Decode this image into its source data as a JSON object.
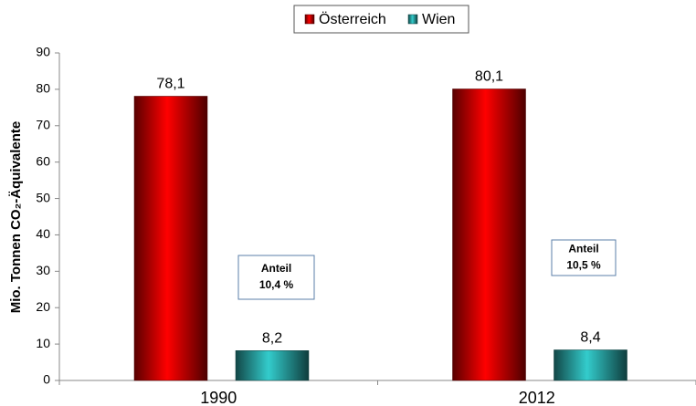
{
  "chart_data": {
    "type": "bar",
    "categories": [
      "1990",
      "2012"
    ],
    "series": [
      {
        "name": "Österreich",
        "color": "#ff0000",
        "values": [
          78.1,
          80.1
        ],
        "value_labels": [
          "78,1",
          "80,1"
        ]
      },
      {
        "name": "Wien",
        "color": "#33cccc",
        "values": [
          8.2,
          8.4
        ],
        "value_labels": [
          "8,2",
          "8,4"
        ]
      }
    ],
    "ylabel": "Mio. Tonnen CO₂-Äquivalente",
    "ylim": [
      0,
      90
    ],
    "yticks": [
      0,
      10,
      20,
      30,
      40,
      50,
      60,
      70,
      80,
      90
    ],
    "grid": false,
    "legend": "top",
    "annotations": [
      {
        "lines": [
          "Anteil",
          "10,4 %"
        ]
      },
      {
        "lines": [
          "Anteil",
          "10,5 %"
        ]
      }
    ]
  }
}
